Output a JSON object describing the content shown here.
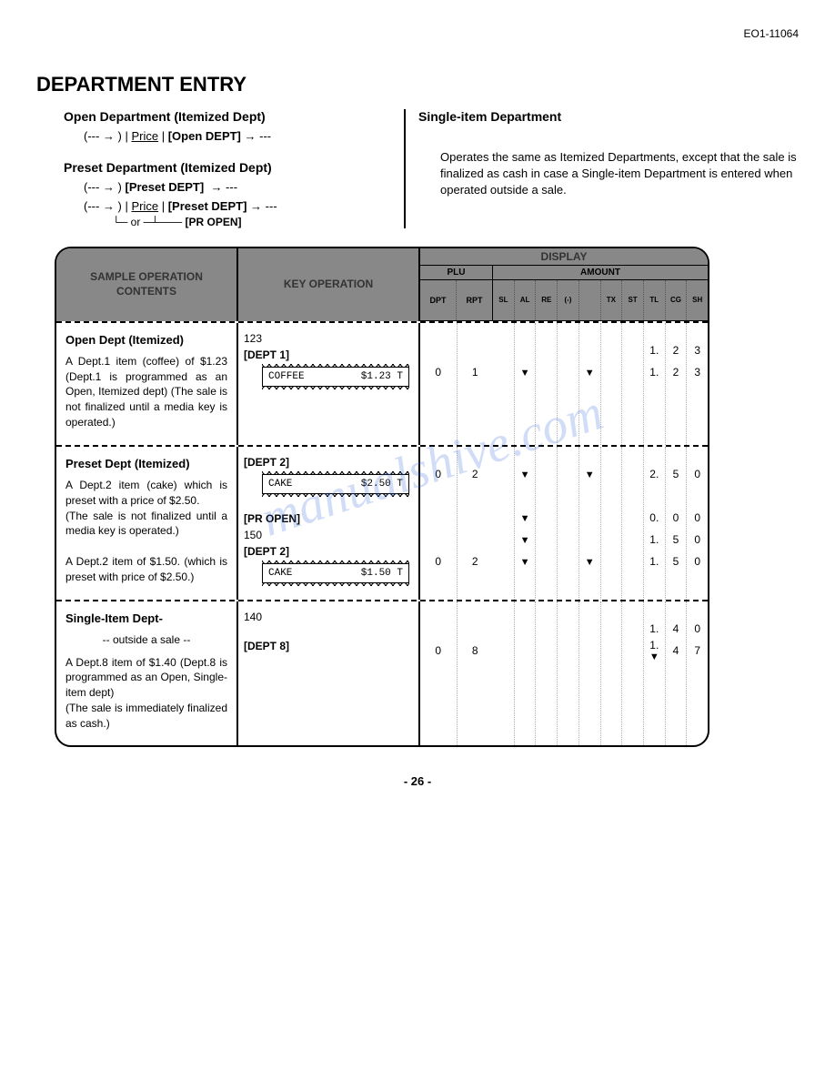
{
  "doc_id": "EO1-11064",
  "title": "DEPARTMENT ENTRY",
  "open_dept": {
    "heading": "Open Department (Itemized Dept)",
    "syntax": "(--- → ) | Price | [Open DEPT] → ---"
  },
  "preset_dept": {
    "heading": "Preset Department  (Itemized Dept)",
    "syntax1": "(--- → ) [Preset DEPT]  → ---",
    "syntax2": "(--- → ) | Price | [Preset DEPT] → ---",
    "or_line": "↑ or  ↑  —  [PR OPEN]"
  },
  "single_item": {
    "heading": "Single-item Department",
    "desc": "Operates the same as Itemized Departments, except that the sale is finalized as cash in case a Single-item Department is entered when operated outside a sale."
  },
  "table": {
    "head": {
      "sample": "SAMPLE OPERATION CONTENTS",
      "keyop": "KEY OPERATION",
      "display": "DISPLAY",
      "plu": "PLU",
      "plu_dpt": "DPT",
      "plu_rpt": "RPT",
      "amount": "AMOUNT",
      "amt_cols": [
        "SL",
        "AL",
        "RE",
        "(-)",
        "",
        "TX",
        "ST",
        "TL",
        "CG",
        "SH"
      ]
    },
    "rows": [
      {
        "title": "Open Dept  (Itemized)",
        "desc": "A Dept.1 item (coffee) of $1.23 (Dept.1 is programmed as an Open, Itemized dept)  (The sale is not finalized until a media key is operated.)",
        "keyops": [
          {
            "text": "123"
          },
          {
            "text": "[DEPT 1]",
            "bold": true
          }
        ],
        "receipt": {
          "item": "COFFEE",
          "price": "$1.23 T"
        },
        "display_lines": [
          {
            "dpt": "",
            "rpt": "",
            "amt": [
              "",
              "",
              "",
              "",
              "",
              "",
              "",
              "1.",
              "2",
              "3"
            ]
          },
          {
            "dpt": "0",
            "rpt": "1",
            "amt": [
              "",
              "▼",
              "",
              "",
              "▼",
              "",
              "",
              "1.",
              "2",
              "3"
            ]
          }
        ]
      },
      {
        "title": "Preset Dept  (Itemized)",
        "desc": "A Dept.2 item (cake) which is preset with a price of $2.50.\n(The sale is not finalized until a media key is operated.)",
        "desc2": "A Dept.2 item of $1.50. (which is preset with price of $2.50.)",
        "keyops": [
          {
            "text": "[DEPT 2]",
            "bold": true
          }
        ],
        "receipt": {
          "item": "CAKE",
          "price": "$2.50 T"
        },
        "keyops2": [
          {
            "text": "[PR OPEN]",
            "bold": true
          },
          {
            "text": "150"
          },
          {
            "text": "[DEPT 2]",
            "bold": true
          }
        ],
        "receipt2": {
          "item": "CAKE",
          "price": "$1.50 T"
        },
        "display_lines": [
          {
            "dpt": "0",
            "rpt": "2",
            "amt": [
              "",
              "▼",
              "",
              "",
              "▼",
              "",
              "",
              "2.",
              "5",
              "0"
            ]
          },
          {
            "dpt": "",
            "rpt": "",
            "amt": [
              "",
              "",
              "",
              "",
              "",
              "",
              "",
              "",
              "",
              ""
            ]
          },
          {
            "dpt": "",
            "rpt": "",
            "amt": [
              "",
              "▼",
              "",
              "",
              "",
              "",
              "",
              "0.",
              "0",
              "0"
            ]
          },
          {
            "dpt": "",
            "rpt": "",
            "amt": [
              "",
              "▼",
              "",
              "",
              "",
              "",
              "",
              "1.",
              "5",
              "0"
            ]
          },
          {
            "dpt": "0",
            "rpt": "2",
            "amt": [
              "",
              "▼",
              "",
              "",
              "▼",
              "",
              "",
              "1.",
              "5",
              "0"
            ]
          }
        ]
      },
      {
        "title": "Single-Item Dept-",
        "sub": "-- outside a sale --",
        "desc": "A Dept.8 item of $1.40 (Dept.8 is programmed as an Open, Single-item dept)\n(The sale is immediately finalized as cash.)",
        "keyops": [
          {
            "text": "140"
          },
          {
            "text": "[DEPT 8]",
            "bold": true
          }
        ],
        "display_lines": [
          {
            "dpt": "",
            "rpt": "",
            "amt": [
              "",
              "",
              "",
              "",
              "",
              "",
              "",
              "1.",
              "4",
              "0"
            ]
          },
          {
            "dpt": "0",
            "rpt": "8",
            "amt": [
              "",
              "",
              "",
              "",
              "",
              "",
              "",
              "1.▼",
              "4",
              "7"
            ]
          }
        ]
      }
    ]
  },
  "page_no": "- 26 -",
  "watermark": "manualshive.com"
}
